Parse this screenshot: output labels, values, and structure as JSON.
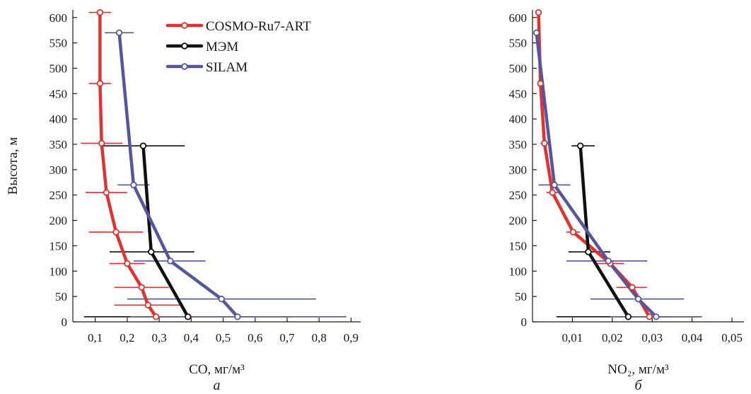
{
  "chart_data": [
    {
      "type": "line",
      "panel_label": "а",
      "xlabel": "CO, мг/м³",
      "ylabel": "Высота, м",
      "xlim": [
        0.03,
        0.93
      ],
      "ylim": [
        0,
        615
      ],
      "xticks": [
        0.1,
        0.2,
        0.3,
        0.4,
        0.5,
        0.6,
        0.7,
        0.8,
        0.9
      ],
      "xtick_labels": [
        "0,1",
        "0,2",
        "0,3",
        "0,4",
        "0,5",
        "0,6",
        "0,7",
        "0,8",
        "0,9"
      ],
      "yticks": [
        0,
        50,
        100,
        150,
        200,
        250,
        300,
        350,
        400,
        450,
        500,
        550,
        600
      ],
      "ytick_labels": [
        "0",
        "50",
        "100",
        "150",
        "200",
        "250",
        "300",
        "350",
        "400",
        "450",
        "500",
        "550",
        "600"
      ],
      "grid": false,
      "legend_position": "top-right",
      "series": [
        {
          "name": "COSMO-Ru7-ART",
          "color": "#e3312d",
          "points": [
            {
              "x": 0.29,
              "y": 10,
              "xerr_lo": 0.225,
              "xerr_hi": 0.355
            },
            {
              "x": 0.265,
              "y": 33,
              "xerr_lo": 0.16,
              "xerr_hi": 0.37
            },
            {
              "x": 0.245,
              "y": 68,
              "xerr_lo": 0.16,
              "xerr_hi": 0.33
            },
            {
              "x": 0.2,
              "y": 115,
              "xerr_lo": 0.145,
              "xerr_hi": 0.255
            },
            {
              "x": 0.165,
              "y": 177,
              "xerr_lo": 0.08,
              "xerr_hi": 0.25
            },
            {
              "x": 0.135,
              "y": 255,
              "xerr_lo": 0.07,
              "xerr_hi": 0.2
            },
            {
              "x": 0.12,
              "y": 352,
              "xerr_lo": 0.055,
              "xerr_hi": 0.185
            },
            {
              "x": 0.115,
              "y": 470,
              "xerr_lo": 0.08,
              "xerr_hi": 0.15
            },
            {
              "x": 0.115,
              "y": 610,
              "xerr_lo": 0.08,
              "xerr_hi": 0.15
            }
          ]
        },
        {
          "name": "МЭМ",
          "color": "#111111",
          "points": [
            {
              "x": 0.39,
              "y": 10,
              "xerr_lo": 0.065,
              "xerr_hi": 0.715
            },
            {
              "x": 0.275,
              "y": 138,
              "xerr_lo": 0.145,
              "xerr_hi": 0.41
            },
            {
              "x": 0.25,
              "y": 347,
              "xerr_lo": 0.12,
              "xerr_hi": 0.38
            }
          ]
        },
        {
          "name": "SILAM",
          "color": "#5656a0",
          "points": [
            {
              "x": 0.545,
              "y": 10,
              "xerr_lo": 0.21,
              "xerr_hi": 0.885
            },
            {
              "x": 0.495,
              "y": 45,
              "xerr_lo": 0.2,
              "xerr_hi": 0.79
            },
            {
              "x": 0.335,
              "y": 120,
              "xerr_lo": 0.22,
              "xerr_hi": 0.445
            },
            {
              "x": 0.22,
              "y": 270,
              "xerr_lo": 0.17,
              "xerr_hi": 0.27
            },
            {
              "x": 0.175,
              "y": 570,
              "xerr_lo": 0.13,
              "xerr_hi": 0.22
            }
          ]
        }
      ]
    },
    {
      "type": "line",
      "panel_label": "б",
      "xlabel": "NO₂, мг/м³",
      "ylabel": "",
      "xlim": [
        0,
        0.053
      ],
      "ylim": [
        0,
        615
      ],
      "xticks": [
        0.01,
        0.02,
        0.03,
        0.04,
        0.05
      ],
      "xtick_labels": [
        "0,01",
        "0,02",
        "0,03",
        "0,04",
        "0,05"
      ],
      "yticks": [
        0,
        50,
        100,
        150,
        200,
        250,
        300,
        350,
        400,
        450,
        500,
        550,
        600
      ],
      "ytick_labels": [
        "0",
        "50",
        "100",
        "150",
        "200",
        "250",
        "300",
        "350",
        "400",
        "450",
        "500",
        "550",
        "600"
      ],
      "grid": false,
      "series": [
        {
          "name": "COSMO-Ru7-ART",
          "color": "#e3312d",
          "points": [
            {
              "x": 0.0293,
              "y": 10,
              "xerr_lo": 0.024,
              "xerr_hi": 0.0345
            },
            {
              "x": 0.025,
              "y": 68,
              "xerr_lo": 0.021,
              "xerr_hi": 0.0287
            },
            {
              "x": 0.0195,
              "y": 115,
              "xerr_lo": 0.016,
              "xerr_hi": 0.023
            },
            {
              "x": 0.0102,
              "y": 177,
              "xerr_lo": 0.0085,
              "xerr_hi": 0.0119
            },
            {
              "x": 0.005,
              "y": 255,
              "xerr_lo": 0.0035,
              "xerr_hi": 0.0065
            },
            {
              "x": 0.003,
              "y": 352,
              "xerr_lo": 0.002,
              "xerr_hi": 0.004
            },
            {
              "x": 0.002,
              "y": 470,
              "xerr_lo": 0.0015,
              "xerr_hi": 0.0025
            },
            {
              "x": 0.0015,
              "y": 610,
              "xerr_lo": 0.001,
              "xerr_hi": 0.002
            }
          ]
        },
        {
          "name": "МЭМ",
          "color": "#111111",
          "points": [
            {
              "x": 0.024,
              "y": 10,
              "xerr_lo": 0.006,
              "xerr_hi": 0.042
            },
            {
              "x": 0.014,
              "y": 138,
              "xerr_lo": 0.009,
              "xerr_hi": 0.0195
            },
            {
              "x": 0.012,
              "y": 347,
              "xerr_lo": 0.0098,
              "xerr_hi": 0.0156
            }
          ]
        },
        {
          "name": "SILAM",
          "color": "#5656a0",
          "points": [
            {
              "x": 0.031,
              "y": 10,
              "xerr_lo": 0.0195,
              "xerr_hi": 0.0425
            },
            {
              "x": 0.0265,
              "y": 45,
              "xerr_lo": 0.0145,
              "xerr_hi": 0.038
            },
            {
              "x": 0.019,
              "y": 120,
              "xerr_lo": 0.0085,
              "xerr_hi": 0.0288
            },
            {
              "x": 0.0055,
              "y": 270,
              "xerr_lo": 0.0015,
              "xerr_hi": 0.0095
            },
            {
              "x": 0.001,
              "y": 570,
              "xerr_lo": 0.0005,
              "xerr_hi": 0.002
            }
          ]
        }
      ]
    }
  ]
}
